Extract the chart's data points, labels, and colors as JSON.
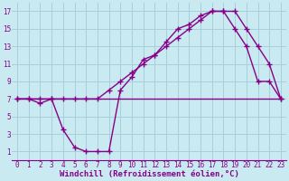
{
  "bg_color": "#c8eaf0",
  "grid_color": "#a8d0dc",
  "line_color": "#880088",
  "font_color": "#880088",
  "xlabel": "Windchill (Refroidissement éolien,°C)",
  "xlim": [
    -0.5,
    23.5
  ],
  "ylim": [
    0.0,
    18.0
  ],
  "xticks": [
    0,
    1,
    2,
    3,
    4,
    5,
    6,
    7,
    8,
    9,
    10,
    11,
    12,
    13,
    14,
    15,
    16,
    17,
    18,
    19,
    20,
    21,
    22,
    23
  ],
  "yticks": [
    1,
    3,
    5,
    7,
    9,
    11,
    13,
    15,
    17
  ],
  "flat_x": [
    0,
    1,
    2,
    3,
    4,
    5,
    6,
    7,
    8,
    9,
    10,
    11,
    12,
    13,
    14,
    15,
    16,
    17,
    18,
    19,
    23
  ],
  "flat_y": [
    7,
    7,
    7,
    7,
    7,
    7,
    7,
    7,
    7,
    7,
    7,
    7,
    7,
    7,
    7,
    7,
    7,
    7,
    7,
    7,
    7
  ],
  "curve1_x": [
    0,
    1,
    2,
    3,
    4,
    5,
    6,
    7,
    8,
    9,
    10,
    11,
    12,
    13,
    14,
    15,
    16,
    17,
    18,
    19,
    20,
    21,
    22,
    23
  ],
  "curve1_y": [
    7,
    7,
    6.5,
    7,
    3.5,
    1.5,
    1,
    1,
    1,
    8,
    9.5,
    11.5,
    12,
    13.5,
    15,
    15.5,
    16.5,
    17,
    17,
    15,
    13,
    9,
    9,
    7
  ],
  "curve2_x": [
    0,
    1,
    2,
    3,
    4,
    5,
    6,
    7,
    8,
    9,
    10,
    11,
    12,
    13,
    14,
    15,
    16,
    17,
    18,
    19,
    20,
    21,
    22,
    23
  ],
  "curve2_y": [
    7,
    7,
    7,
    7,
    7,
    7,
    7,
    7,
    8,
    9,
    10,
    11,
    12,
    13,
    14,
    15,
    16,
    17,
    17,
    17,
    15,
    13,
    11,
    7
  ],
  "tick_fontsize": 5.5,
  "xlabel_fontsize": 6.5
}
